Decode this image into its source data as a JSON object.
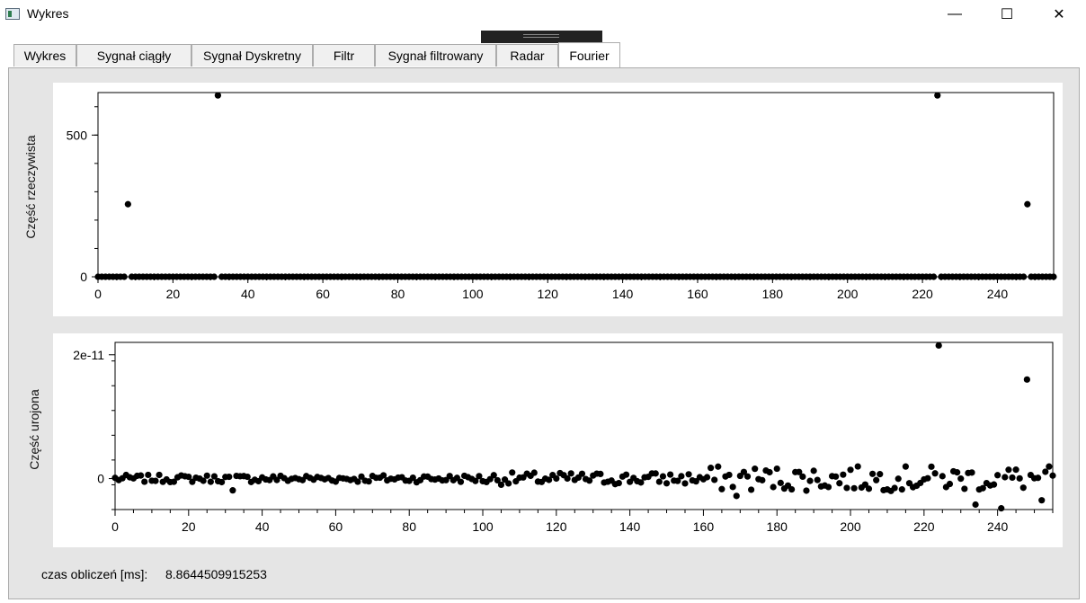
{
  "window": {
    "title": "Wykres",
    "minimize_label": "—",
    "maximize_label": "☐",
    "close_label": "✕"
  },
  "tabs": [
    {
      "label": "Wykres"
    },
    {
      "label": "Sygnał ciągły"
    },
    {
      "label": "Sygnał Dyskretny"
    },
    {
      "label": "Filtr"
    },
    {
      "label": "Sygnał filtrowany"
    },
    {
      "label": "Radar"
    },
    {
      "label": "Fourier",
      "active": true
    }
  ],
  "status": {
    "label": "czas obliczeń [ms]:",
    "value": "8.8644509915253"
  },
  "chart_data": [
    {
      "type": "scatter",
      "ylabel": "Część rzeczywista",
      "xlabel": "",
      "xlim": [
        0,
        255
      ],
      "ylim": [
        0,
        650
      ],
      "x_ticks": [
        0,
        20,
        40,
        60,
        80,
        100,
        120,
        140,
        160,
        180,
        200,
        220,
        240
      ],
      "y_ticks": [
        0,
        500
      ],
      "y_tick_labels": [
        "0",
        "500"
      ],
      "grid": false,
      "points_rule": "x = 0..255, y = 0 except listed peaks",
      "peaks": [
        {
          "x": 8,
          "y": 256
        },
        {
          "x": 32,
          "y": 640
        },
        {
          "x": 224,
          "y": 640
        },
        {
          "x": 248,
          "y": 256
        }
      ]
    },
    {
      "type": "scatter",
      "ylabel": "Część urojona",
      "xlabel": "",
      "xlim": [
        0,
        255
      ],
      "ylim": [
        -5e-12,
        2.2e-11
      ],
      "x_ticks": [
        0,
        20,
        40,
        60,
        80,
        100,
        120,
        140,
        160,
        180,
        200,
        220,
        240
      ],
      "y_ticks": [
        0,
        2e-11
      ],
      "y_tick_labels": [
        "0",
        "2e-11"
      ],
      "grid": false,
      "points_rule": "x = 0..255, y ≈ 0 with small noise; listed outliers",
      "outliers": [
        {
          "x": 224,
          "y": 2.15e-11
        },
        {
          "x": 248,
          "y": 1.6e-11
        },
        {
          "x": 241,
          "y": -4.8e-12
        },
        {
          "x": 234,
          "y": -4.2e-12
        },
        {
          "x": 252,
          "y": -3.5e-12
        },
        {
          "x": 169,
          "y": -2.8e-12
        },
        {
          "x": 32,
          "y": -1.9e-12
        }
      ]
    }
  ]
}
